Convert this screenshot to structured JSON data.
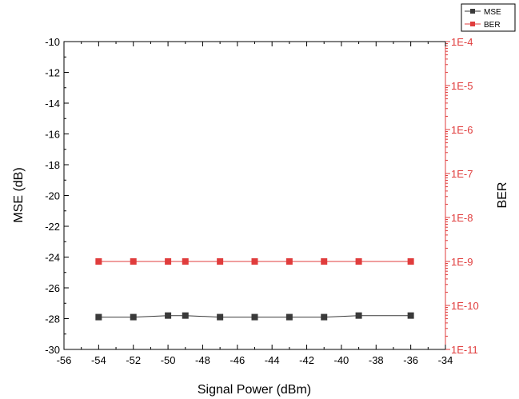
{
  "chart_data": {
    "type": "line",
    "xlabel": "Signal Power (dBm)",
    "ylabel": "MSE (dB)",
    "y2label": "BER",
    "xlim": [
      -56,
      -34
    ],
    "ylim": [
      -30,
      -10
    ],
    "y2lim": [
      1e-11,
      0.0001
    ],
    "y2scale": "log",
    "grid": false,
    "legend_position": "top-right",
    "x_ticks": [
      "-56",
      "-54",
      "-52",
      "-50",
      "-48",
      "-46",
      "-44",
      "-42",
      "-40",
      "-38",
      "-36",
      "-34"
    ],
    "y_ticks": [
      "-10",
      "-12",
      "-14",
      "-16",
      "-18",
      "-20",
      "-22",
      "-24",
      "-26",
      "-28",
      "-30"
    ],
    "y2_ticks": [
      "1E-4",
      "1E-5",
      "1E-6",
      "1E-7",
      "1E-8",
      "1E-9",
      "1E-10",
      "1E-11"
    ],
    "series": [
      {
        "name": "MSE",
        "axis": "left",
        "color": "#3a3a3a",
        "marker": "square",
        "x": [
          -54,
          -52,
          -50,
          -49,
          -47,
          -45,
          -43,
          -41,
          -39,
          -36
        ],
        "y": [
          -27.9,
          -27.9,
          -27.8,
          -27.8,
          -27.9,
          -27.9,
          -27.9,
          -27.9,
          -27.8,
          -27.8
        ]
      },
      {
        "name": "BER",
        "axis": "right",
        "color": "#e03c3c",
        "marker": "square",
        "x": [
          -54,
          -52,
          -50,
          -49,
          -47,
          -45,
          -43,
          -41,
          -39,
          -36
        ],
        "y": [
          1e-09,
          1e-09,
          1e-09,
          1e-09,
          1e-09,
          1e-09,
          1e-09,
          1e-09,
          1e-09,
          1e-09
        ]
      }
    ]
  }
}
